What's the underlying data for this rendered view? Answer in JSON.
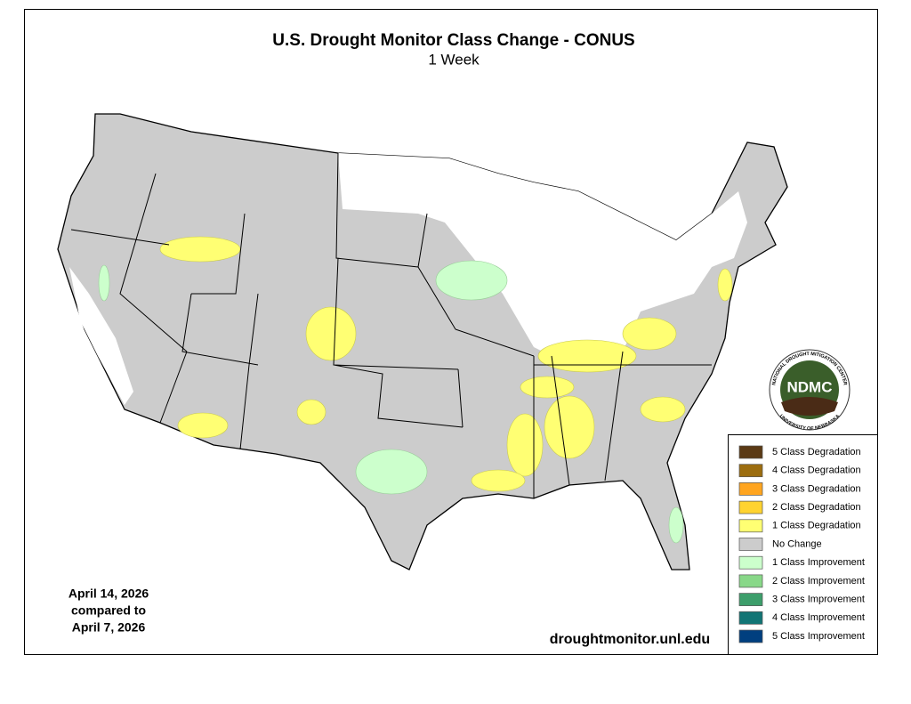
{
  "header": {
    "title": "U.S. Drought Monitor Class Change - CONUS",
    "subtitle": "1 Week"
  },
  "legend": {
    "items": [
      {
        "label": "5 Class Degradation",
        "color": "#5b3a15"
      },
      {
        "label": "4 Class Degradation",
        "color": "#9c6d0f"
      },
      {
        "label": "3 Class Degradation",
        "color": "#ffa51f"
      },
      {
        "label": "2 Class Degradation",
        "color": "#ffd330"
      },
      {
        "label": "1 Class Degradation",
        "color": "#ffff73"
      },
      {
        "label": "No Change",
        "color": "#cccccc"
      },
      {
        "label": "1 Class Improvement",
        "color": "#ccffcc"
      },
      {
        "label": "2 Class Improvement",
        "color": "#88d888"
      },
      {
        "label": "3 Class Improvement",
        "color": "#3d9e6b"
      },
      {
        "label": "4 Class Improvement",
        "color": "#127575"
      },
      {
        "label": "5 Class Improvement",
        "color": "#003f7f"
      }
    ]
  },
  "date": {
    "lines": [
      "April 14, 2026",
      "compared to",
      "April 7, 2026"
    ]
  },
  "source": "droughtmonitor.unl.edu",
  "logo": {
    "label": "NDMC",
    "ring_top": "NATIONAL DROUGHT MITIGATION CENTER",
    "ring_bottom": "UNIVERSITY OF NEBRASKA"
  }
}
